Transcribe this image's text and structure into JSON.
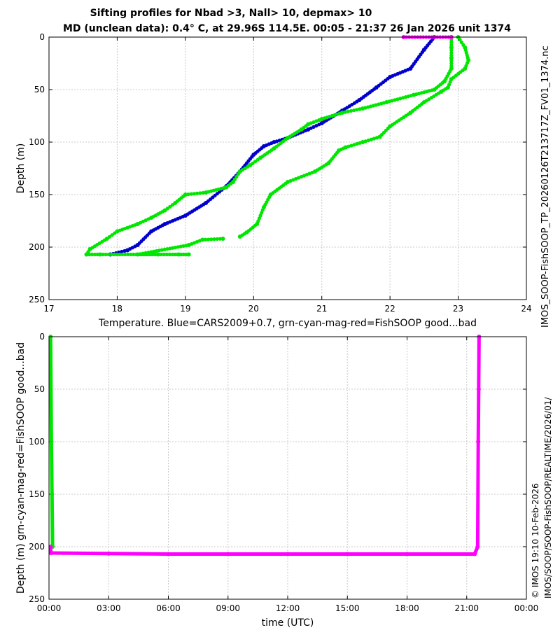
{
  "title_line1": "Sifting profiles for Nbad >3, Nall> 10, depmax> 10",
  "title_line2": "MD (unclean data): 0.4° C, at 29.96S 114.5E. 00:05 - 21:37 26 Jan 2026 unit 1374",
  "side_file": "IMOS_SOOP-FishSOOP_TP_20260126T213717Z_FV01_1374.nc",
  "side_path": "IMOS/SOOP/SOOP-FishSOOP/REALTIME/2026/01/",
  "side_stamp": "© IMOS 19:10 10-Feb-2026",
  "colors": {
    "cars": "#0000cc",
    "good": "#00e600",
    "bad": "#ff00ff"
  },
  "chart_data": [
    {
      "type": "scatter",
      "xlabel": "Temperature. Blue=CARS2009+0.7, grn-cyan-mag-red=FishSOOP good...bad",
      "ylabel": "Depth (m)",
      "xlim": [
        17,
        24
      ],
      "ylim": [
        250,
        0
      ],
      "xticks": [
        "17",
        "18",
        "19",
        "20",
        "21",
        "22",
        "23",
        "24"
      ],
      "yticks": [
        "0",
        "50",
        "100",
        "150",
        "200",
        "250"
      ],
      "grid": true,
      "series": [
        {
          "color": "blue",
          "points": [
            [
              22.65,
              0
            ],
            [
              22.5,
              12
            ],
            [
              22.3,
              30
            ],
            [
              22.0,
              38
            ],
            [
              21.8,
              48
            ],
            [
              21.55,
              60
            ],
            [
              21.3,
              70
            ],
            [
              21.0,
              82
            ],
            [
              20.8,
              88
            ],
            [
              20.5,
              96
            ],
            [
              20.3,
              100
            ],
            [
              20.15,
              104
            ],
            [
              20.0,
              112
            ],
            [
              19.8,
              128
            ],
            [
              19.6,
              142
            ],
            [
              19.3,
              158
            ],
            [
              19.0,
              170
            ],
            [
              18.7,
              178
            ],
            [
              18.5,
              185
            ],
            [
              18.3,
              198
            ],
            [
              18.15,
              203
            ],
            [
              17.9,
              207
            ]
          ]
        },
        {
          "color": "green",
          "points": [
            [
              23.0,
              0
            ],
            [
              23.1,
              10
            ],
            [
              23.15,
              22
            ],
            [
              23.1,
              30
            ],
            [
              22.9,
              40
            ],
            [
              22.85,
              48
            ],
            [
              22.75,
              52
            ],
            [
              22.5,
              62
            ],
            [
              22.3,
              72
            ],
            [
              22.0,
              85
            ],
            [
              21.85,
              95
            ],
            [
              21.6,
              100
            ],
            [
              21.35,
              105
            ],
            [
              21.25,
              108
            ],
            [
              21.1,
              120
            ],
            [
              20.9,
              128
            ],
            [
              20.5,
              138
            ],
            [
              20.25,
              150
            ],
            [
              20.15,
              162
            ],
            [
              20.05,
              178
            ],
            [
              19.9,
              186
            ],
            [
              19.8,
              190
            ]
          ]
        },
        {
          "color": "green",
          "points": [
            [
              22.9,
              0
            ],
            [
              22.9,
              10
            ],
            [
              22.9,
              20
            ],
            [
              22.9,
              30
            ],
            [
              22.8,
              42
            ],
            [
              22.65,
              50
            ],
            [
              22.35,
              55
            ],
            [
              21.95,
              62
            ],
            [
              21.6,
              68
            ],
            [
              21.3,
              72
            ],
            [
              21.0,
              78
            ],
            [
              20.8,
              83
            ],
            [
              20.7,
              88
            ],
            [
              20.5,
              96
            ],
            [
              20.3,
              106
            ],
            [
              20.1,
              115
            ],
            [
              19.95,
              122
            ],
            [
              19.8,
              128
            ],
            [
              19.7,
              138
            ],
            [
              19.6,
              143
            ],
            [
              19.3,
              148
            ],
            [
              19.0,
              150
            ],
            [
              18.85,
              158
            ],
            [
              18.7,
              165
            ],
            [
              18.5,
              172
            ],
            [
              18.3,
              178
            ],
            [
              18.0,
              185
            ],
            [
              17.85,
              192
            ],
            [
              17.6,
              202
            ],
            [
              17.55,
              207
            ]
          ]
        },
        {
          "color": "green",
          "points": [
            [
              19.55,
              192
            ],
            [
              19.25,
              193
            ],
            [
              19.05,
              198
            ],
            [
              18.3,
              207
            ],
            [
              18.6,
              207
            ],
            [
              18.9,
              207
            ],
            [
              19.05,
              207
            ],
            [
              17.55,
              207
            ],
            [
              17.75,
              207
            ]
          ]
        },
        {
          "color": "magenta",
          "points": [
            [
              22.2,
              0
            ],
            [
              22.9,
              0
            ]
          ]
        }
      ]
    },
    {
      "type": "scatter",
      "xlabel": "time (UTC)",
      "ylabel": "Depth (m) grn-cyan-mag-red=FishSOOP good...bad",
      "xlim": [
        "00:00",
        "24:00"
      ],
      "ylim": [
        250,
        0
      ],
      "xticks": [
        "00:00",
        "03:00",
        "06:00",
        "09:00",
        "12:00",
        "15:00",
        "18:00",
        "21:00",
        "00:00"
      ],
      "yticks": [
        "0",
        "50",
        "100",
        "150",
        "200",
        "250"
      ],
      "grid": true,
      "series": [
        {
          "color": "green",
          "points": [
            [
              0.08,
              0
            ],
            [
              0.12,
              100
            ],
            [
              0.15,
              150
            ],
            [
              0.18,
              200
            ]
          ]
        },
        {
          "color": "magenta",
          "points": [
            [
              0.08,
              200
            ],
            [
              0.1,
              206
            ],
            [
              3,
              206.5
            ],
            [
              6,
              207
            ],
            [
              9,
              207
            ],
            [
              12,
              207
            ],
            [
              15,
              207
            ],
            [
              18,
              207
            ],
            [
              21.4,
              207
            ],
            [
              21.55,
              200
            ],
            [
              21.58,
              100
            ],
            [
              21.6,
              50
            ],
            [
              21.62,
              0
            ]
          ]
        }
      ]
    }
  ]
}
